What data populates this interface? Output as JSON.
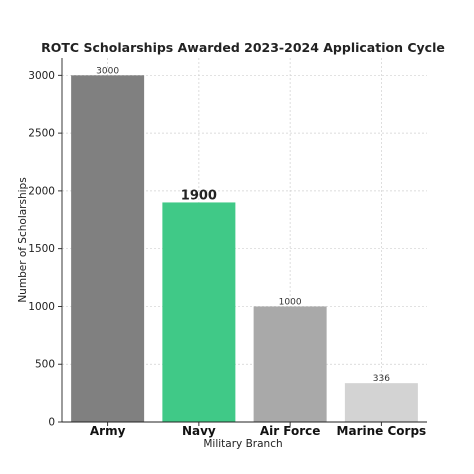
{
  "chart_data": {
    "type": "bar",
    "title": "ROTC Scholarships Awarded 2023-2024 Application Cycle",
    "xlabel": "Military Branch",
    "ylabel": "Number of Scholarships",
    "categories": [
      "Army",
      "Navy",
      "Air Force",
      "Marine Corps"
    ],
    "values": [
      3000,
      1900,
      1000,
      336
    ],
    "data_labels": [
      "3000",
      "1900",
      "1000",
      "336"
    ],
    "highlighted_category": "Navy",
    "colors": [
      "#808080",
      "#40c987",
      "#a9a9a9",
      "#d3d3d3"
    ],
    "ylim": [
      0,
      3150
    ],
    "yticks": [
      0,
      500,
      1000,
      1500,
      2000,
      2500,
      3000
    ],
    "grid": true
  }
}
